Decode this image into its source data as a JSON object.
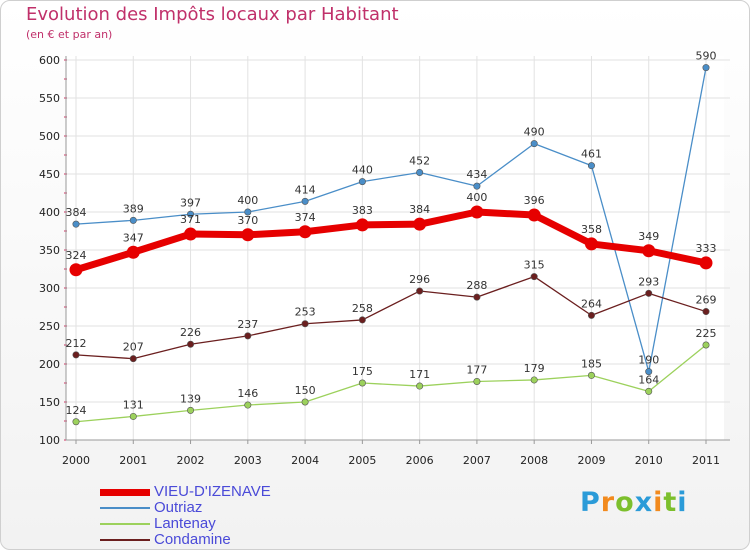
{
  "title": "Evolution des Impôts locaux par Habitant",
  "subtitle": "(en € et par an)",
  "logo": {
    "text": "Proxiti",
    "letter_colors": [
      "#2b9bd8",
      "#f28a1d",
      "#7cbf2c",
      "#2b9bd8",
      "#f28a1d",
      "#7cbf2c",
      "#2b9bd8"
    ]
  },
  "chart_data": {
    "type": "line",
    "title": "Evolution des Impôts locaux par Habitant",
    "subtitle": "(en € et par an)",
    "xlabel": "",
    "ylabel": "",
    "x": [
      "2000",
      "2001",
      "2002",
      "2003",
      "2004",
      "2005",
      "2006",
      "2007",
      "2008",
      "2009",
      "2010",
      "2011"
    ],
    "ylim": [
      100,
      600
    ],
    "yticks": [
      100,
      150,
      200,
      250,
      300,
      350,
      400,
      450,
      500,
      550,
      600
    ],
    "grid": true,
    "legend_position": "bottom-left",
    "series": [
      {
        "name": "Outriaz",
        "color": "#4a8ec8",
        "emphasis": false,
        "values": [
          384,
          389,
          397,
          400,
          414,
          440,
          452,
          434,
          490,
          461,
          190,
          590
        ],
        "labels": [
          "384",
          "389",
          "397",
          "400",
          "414",
          "440",
          "452",
          "434",
          "490",
          "461",
          "190",
          "590"
        ]
      },
      {
        "name": "Lantenay",
        "color": "#9cd15c",
        "emphasis": false,
        "values": [
          124,
          131,
          139,
          146,
          150,
          175,
          171,
          177,
          179,
          185,
          164,
          225
        ],
        "labels": [
          "124",
          "131",
          "139",
          "146",
          "150",
          "175",
          "171",
          "177",
          "179",
          "185",
          "164",
          "225"
        ]
      },
      {
        "name": "Condamine",
        "color": "#6b1f1f",
        "emphasis": false,
        "values": [
          212,
          207,
          226,
          237,
          253,
          258,
          296,
          288,
          315,
          264,
          293,
          269
        ],
        "labels": [
          "212",
          "207",
          "226",
          "237",
          "253",
          "258",
          "296",
          "288",
          "315",
          "264",
          "293",
          "269"
        ]
      },
      {
        "name": "VIEU-D'IZENAVE",
        "color": "#e60000",
        "emphasis": true,
        "values": [
          324,
          347,
          371,
          370,
          374,
          383,
          384,
          400,
          396,
          358,
          349,
          333
        ],
        "labels": [
          "324",
          "347",
          "371",
          "370",
          "374",
          "383",
          "384",
          "400",
          "396",
          "358",
          "349",
          "333"
        ]
      }
    ],
    "legend_order": [
      "VIEU-D'IZENAVE",
      "Outriaz",
      "Lantenay",
      "Condamine"
    ]
  }
}
